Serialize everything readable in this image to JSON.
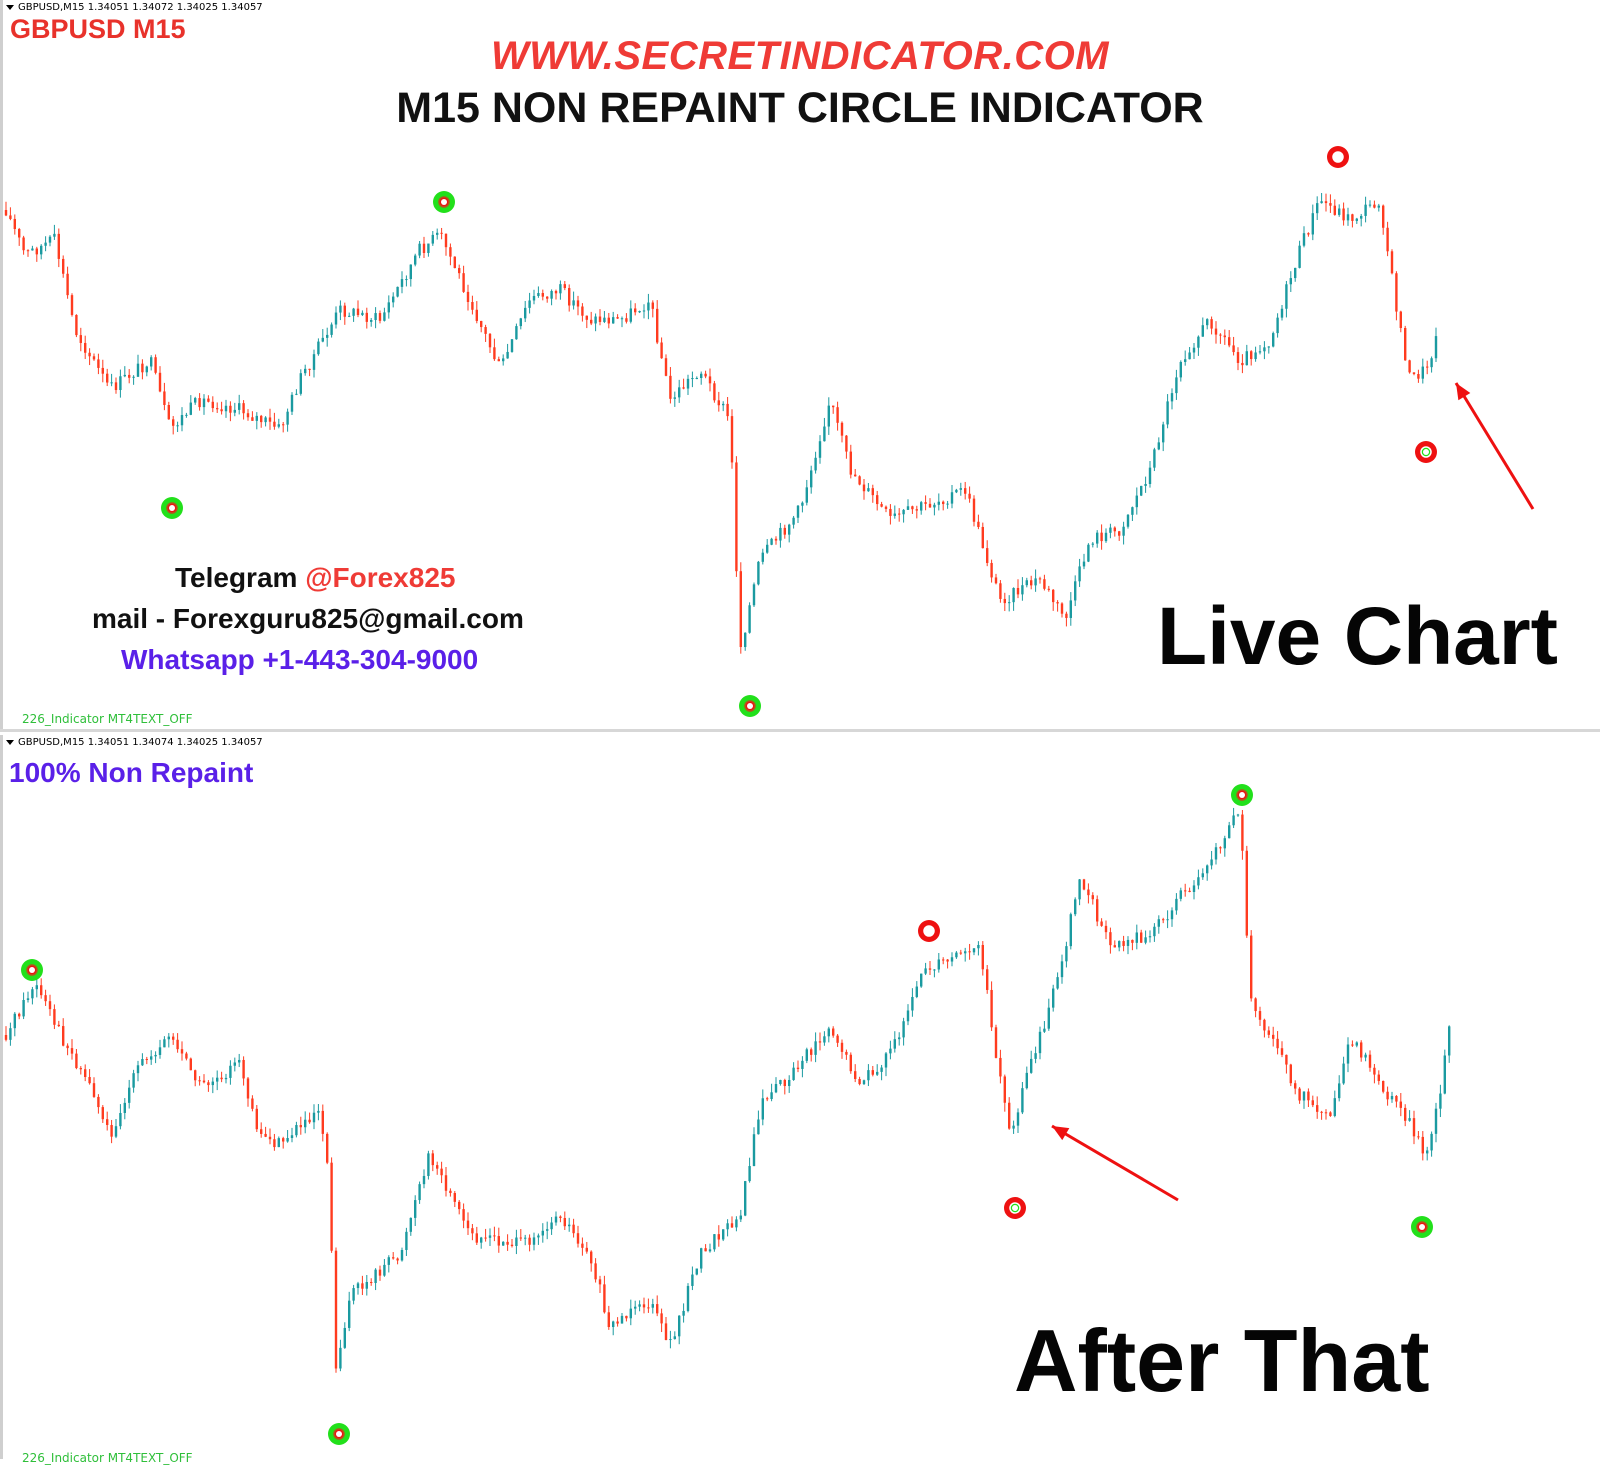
{
  "top_panel": {
    "info_bar": "GBPUSD,M15  1.34051 1.34072 1.34025 1.34057",
    "symbol_title": "GBPUSD M15",
    "site_title": "WWW.SECRETINDICATOR.COM",
    "headline": "M15 NON REPAINT CIRCLE INDICATOR",
    "contact": {
      "telegram_label": "Telegram ",
      "telegram_handle": "@Forex825",
      "mail": "mail - Forexguru825@gmail.com",
      "whatsapp": "Whatsapp +1-443-304-9000"
    },
    "caption": "Live Chart",
    "footer": "226_Indicator MT4TEXT_OFF"
  },
  "bottom_panel": {
    "info_bar": "GBPUSD,M15  1.34051 1.34074 1.34025 1.34057",
    "tagline": "100% Non Repaint",
    "caption": "After That",
    "footer": "226_Indicator MT4TEXT_OFF"
  },
  "colors": {
    "bull_candle": "#1a9aa0",
    "bear_candle": "#ff3b1f",
    "signal_green": "#22e01b",
    "signal_red": "#ee1111",
    "arrow": "#ee1111"
  },
  "icons": {
    "signal": "circle-signal-icon",
    "arrow": "pointer-arrow-icon"
  }
}
